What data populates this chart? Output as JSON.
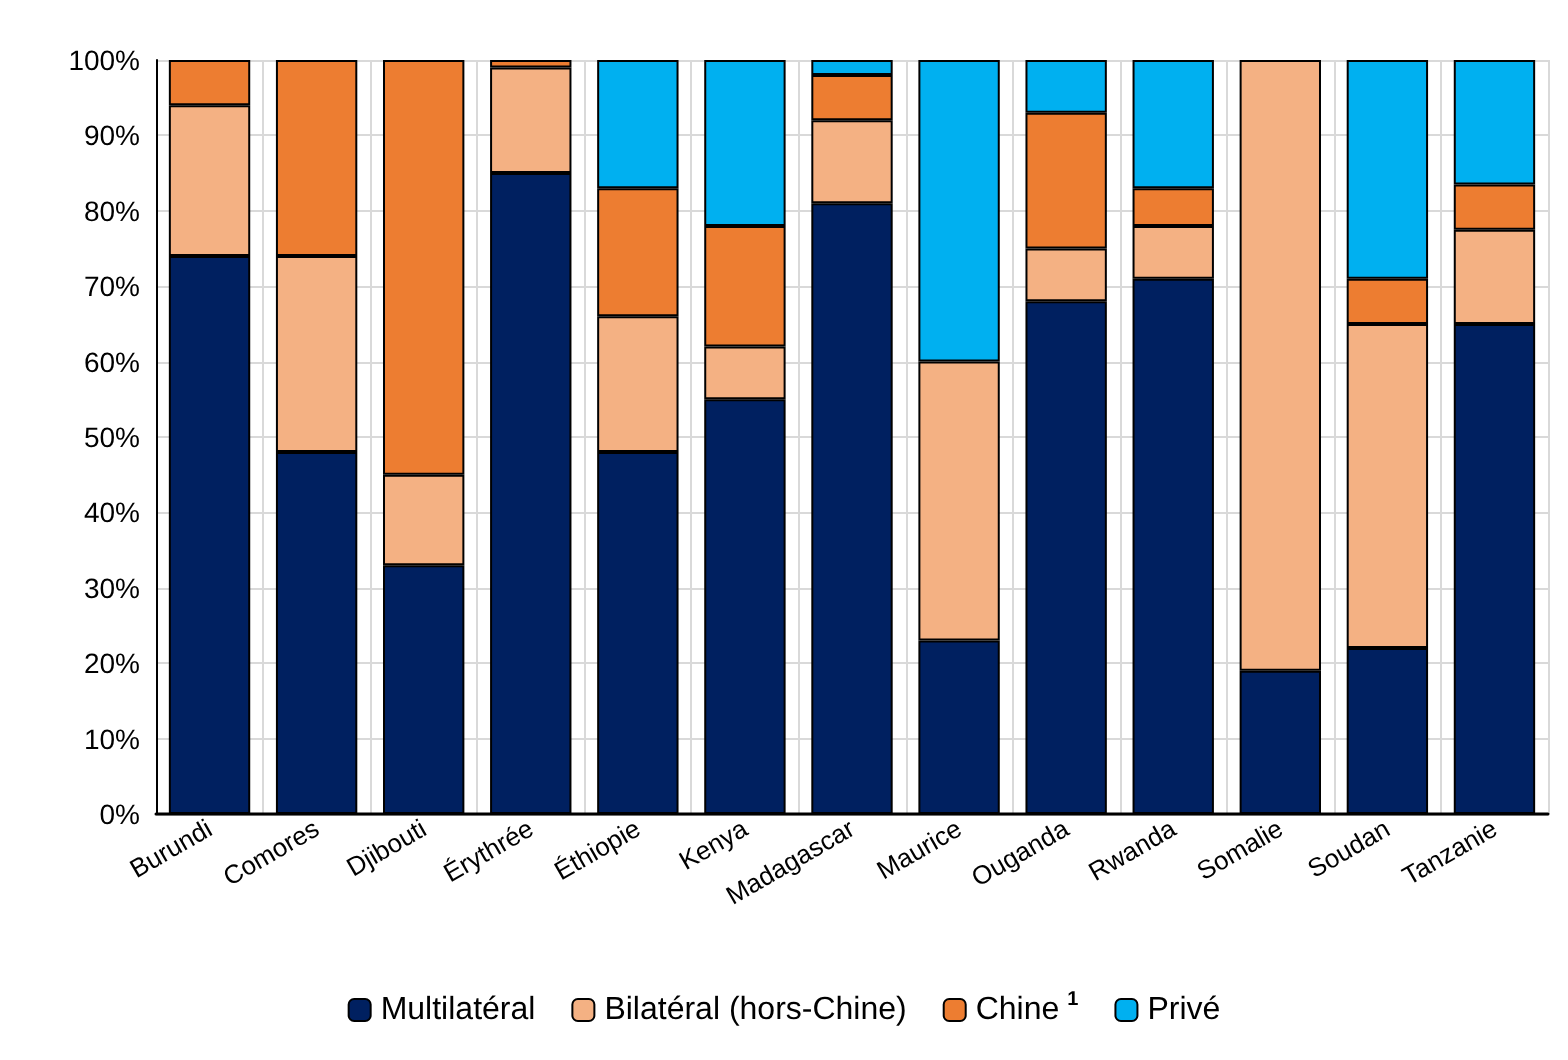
{
  "chart_data": {
    "type": "bar",
    "stacked": true,
    "categories": [
      "Burundi",
      "Comores",
      "Djibouti",
      "Érythrée",
      "Éthiopie",
      "Kenya",
      "Madagascar",
      "Maurice",
      "Ouganda",
      "Rwanda",
      "Somalie",
      "Soudan",
      "Tanzanie"
    ],
    "series": [
      {
        "name": "Multilatéral",
        "color": "#002060",
        "values": [
          74,
          48,
          33,
          85,
          48,
          55,
          81,
          23,
          68,
          71,
          19,
          22,
          65
        ]
      },
      {
        "name": "Bilatéral (hors-Chine)",
        "color": "#f4b183",
        "values": [
          20,
          26,
          12,
          14,
          18,
          7,
          11,
          37,
          7,
          7,
          81,
          43,
          12.5
        ]
      },
      {
        "name": "Chine$^{1}$",
        "color": "#ed7d31",
        "values": [
          6,
          26,
          55,
          1,
          17,
          16,
          6,
          0,
          18,
          5,
          0,
          6,
          6
        ]
      },
      {
        "name": "Privé",
        "color": "#00b0f0",
        "values": [
          0,
          0,
          0,
          0,
          17,
          22,
          2,
          40,
          7,
          17,
          0,
          29,
          16.5
        ]
      }
    ],
    "ylim": [
      0,
      100
    ],
    "yticks": [
      {
        "value": 0,
        "label": "0%"
      },
      {
        "value": 10,
        "label": "10%"
      },
      {
        "value": 20,
        "label": "20%"
      },
      {
        "value": 30,
        "label": "30%"
      },
      {
        "value": 40,
        "label": "40%"
      },
      {
        "value": 50,
        "label": "50%"
      },
      {
        "value": 60,
        "label": "60%"
      },
      {
        "value": 70,
        "label": "70%"
      },
      {
        "value": 80,
        "label": "80%"
      },
      {
        "value": 90,
        "label": "90%"
      },
      {
        "value": 100,
        "label": "100%"
      }
    ],
    "grid": true,
    "legend": "bottom"
  }
}
